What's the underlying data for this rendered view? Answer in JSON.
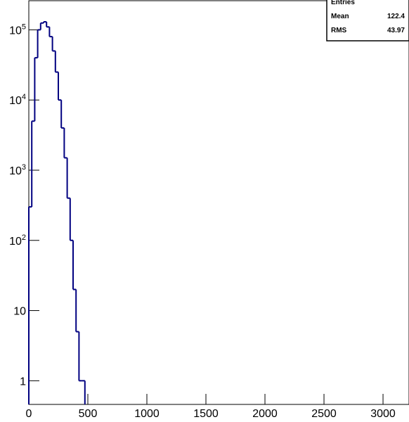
{
  "chart_data": {
    "type": "histogram",
    "log_y": true,
    "color": "#000080",
    "bins": [
      0,
      25,
      50,
      75,
      100,
      125,
      150,
      175,
      200,
      225,
      250,
      275,
      300,
      325,
      350,
      375,
      400,
      425,
      450,
      475
    ],
    "values": [
      300,
      5000,
      40000,
      100000,
      125000,
      130000,
      110000,
      80000,
      50000,
      25000,
      10000,
      4000,
      1500,
      400,
      100,
      20,
      5,
      1,
      1
    ],
    "xlim": [
      0,
      3220
    ],
    "xticks": [
      0,
      500,
      1000,
      1500,
      2000,
      2500,
      3000
    ],
    "ylim": [
      0.46,
      260000
    ],
    "yticks": [
      1,
      10,
      {
        "value": 100,
        "label": "10^2"
      },
      {
        "value": 1000,
        "label": "10^3"
      },
      {
        "value": 10000,
        "label": "10^4"
      },
      {
        "value": 100000,
        "label": "10^5"
      }
    ],
    "stats": [
      {
        "label": "Entries"
      },
      {
        "label": "Mean",
        "value": "122.4"
      },
      {
        "label": "RMS",
        "value": "43.97"
      }
    ]
  }
}
